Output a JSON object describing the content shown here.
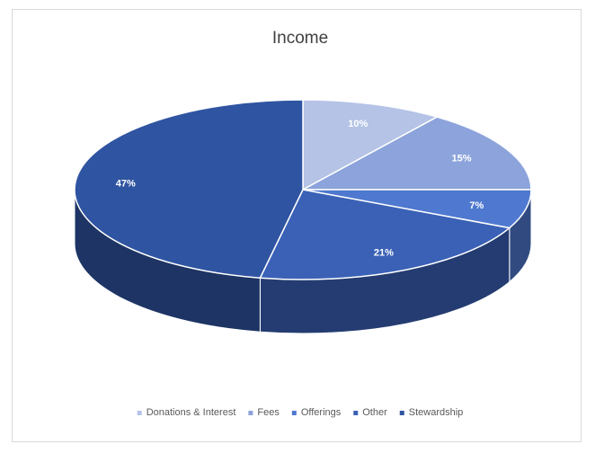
{
  "chart_data": {
    "type": "pie",
    "style": "3d",
    "title": "Income",
    "categories": [
      "Donations & Interest",
      "Fees",
      "Offerings",
      "Other",
      "Stewardship"
    ],
    "values": [
      10,
      15,
      7,
      21,
      47
    ],
    "labels": [
      "10%",
      "15%",
      "7%",
      "21%",
      "47%"
    ],
    "colors": [
      "#b4c3e6",
      "#8ca3db",
      "#4f79d0",
      "#3a61b6",
      "#2f54a1"
    ],
    "legend_position": "bottom"
  }
}
